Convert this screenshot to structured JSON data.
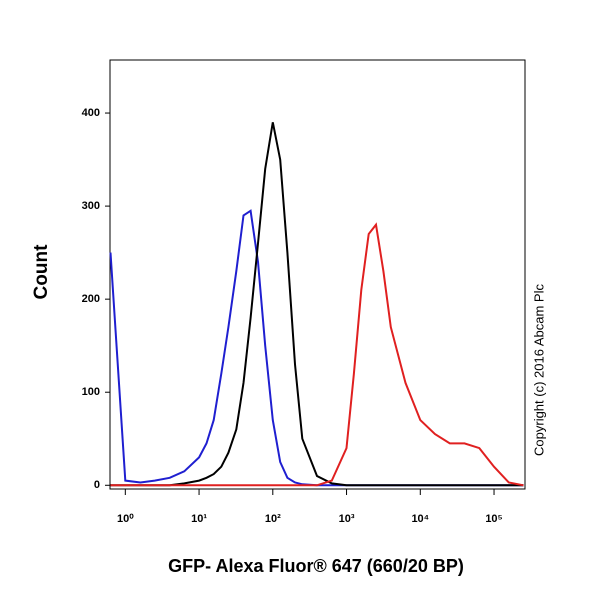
{
  "chart_data": {
    "type": "line",
    "x_label": "GFP- Alexa Fluor® 647 (660/20 BP)",
    "y_label": "Count",
    "annotation": "Copyright (c) 2016 Abcam Plc",
    "x_log": true,
    "x": [
      0.63,
      1,
      1.6,
      2.5,
      4,
      6.3,
      10,
      12.6,
      15.8,
      20,
      25,
      32,
      40,
      50,
      63,
      79,
      100,
      126,
      158,
      200,
      251,
      398,
      631,
      1000,
      1259,
      1585,
      1995,
      2512,
      3162,
      3981,
      6310,
      10000,
      15849,
      25119,
      39811,
      63096,
      100000,
      158489,
      251189
    ],
    "series": [
      {
        "color": "#1f1fd0",
        "values": [
          250,
          5,
          3,
          5,
          8,
          15,
          30,
          45,
          70,
          120,
          170,
          230,
          290,
          295,
          240,
          150,
          70,
          25,
          8,
          3,
          1,
          0,
          0,
          0,
          0,
          0,
          0,
          0,
          0,
          0,
          0,
          0,
          0,
          0,
          0,
          0,
          0,
          0,
          0
        ]
      },
      {
        "color": "#000000",
        "values": [
          0,
          0,
          0,
          0,
          0,
          2,
          5,
          8,
          12,
          20,
          35,
          60,
          110,
          180,
          260,
          340,
          390,
          350,
          250,
          130,
          50,
          10,
          2,
          0,
          0,
          0,
          0,
          0,
          0,
          0,
          0,
          0,
          0,
          0,
          0,
          0,
          0,
          0,
          0
        ]
      },
      {
        "color": "#e02020",
        "values": [
          0,
          0,
          0,
          0,
          0,
          0,
          0,
          0,
          0,
          0,
          0,
          0,
          0,
          0,
          0,
          0,
          0,
          0,
          0,
          0,
          0,
          0,
          5,
          40,
          120,
          210,
          270,
          280,
          230,
          170,
          110,
          70,
          55,
          45,
          45,
          40,
          20,
          3,
          0
        ]
      }
    ],
    "xlim": [
      0.62,
      263000
    ],
    "xticks": [
      {
        "value": 1,
        "label": "10⁰"
      },
      {
        "value": 10,
        "label": "10¹"
      },
      {
        "value": 100,
        "label": "10²"
      },
      {
        "value": 1000,
        "label": "10³"
      },
      {
        "value": 10000,
        "label": "10⁴"
      },
      {
        "value": 100000,
        "label": "10⁵"
      }
    ],
    "ylim": [
      -4,
      457
    ],
    "yticks": [
      0,
      100,
      200,
      300,
      400
    ]
  }
}
